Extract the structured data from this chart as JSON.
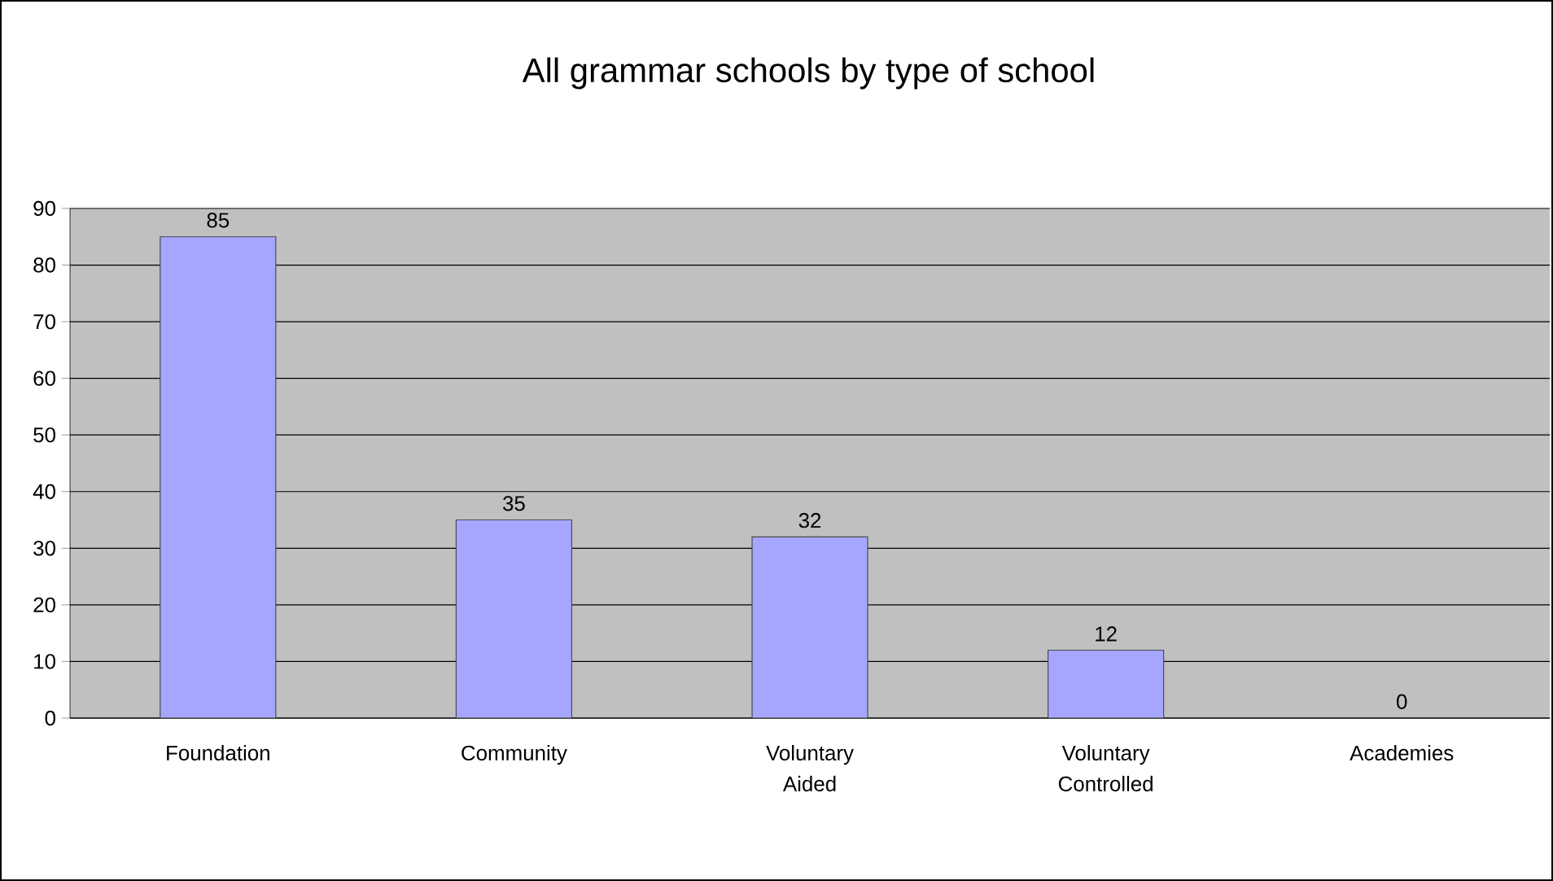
{
  "chart_data": {
    "type": "bar",
    "title": "All grammar schools by type of school",
    "categories": [
      "Foundation",
      "Community",
      "Voluntary Aided",
      "Voluntary Controlled",
      "Academies"
    ],
    "values": [
      85,
      35,
      32,
      12,
      0
    ],
    "color": "#a6a6ff",
    "ylim": [
      0,
      90
    ],
    "yticks": [
      0,
      10,
      20,
      30,
      40,
      50,
      60,
      70,
      80,
      90
    ],
    "grid": "y",
    "data_labels": true
  }
}
